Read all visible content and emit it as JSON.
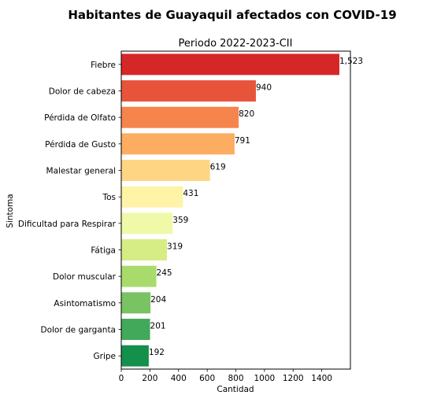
{
  "chart_data": {
    "type": "bar",
    "orientation": "horizontal",
    "title": "Habitantes de Guayaquil afectados con COVID-19",
    "subtitle": "Periodo 2022-2023-CII",
    "xlabel": "Cantidad",
    "ylabel": "Sintoma",
    "categories": [
      "Fiebre",
      "Dolor de cabeza",
      "Pérdida de Olfato",
      "Pérdida de Gusto",
      "Malestar general",
      "Tos",
      "Dificultad para Respirar",
      "Fátiga",
      "Dolor muscular",
      "Asintomatismo",
      "Dolor de garganta",
      "Gripe"
    ],
    "values": [
      1523,
      940,
      820,
      791,
      619,
      431,
      359,
      319,
      245,
      204,
      201,
      192
    ],
    "data_labels": [
      "1,523",
      "940",
      "820",
      "791",
      "619",
      "431",
      "359",
      "319",
      "245",
      "204",
      "201",
      "192"
    ],
    "colors": [
      "#d62728",
      "#e8543a",
      "#f5844d",
      "#fcad61",
      "#fed583",
      "#fef3a6",
      "#eff9a8",
      "#d5ed84",
      "#a9db6c",
      "#79c363",
      "#42a95a",
      "#148f4c"
    ],
    "xticks": [
      0,
      200,
      400,
      600,
      800,
      1000,
      1200,
      1400
    ],
    "xlim": [
      0,
      1600
    ],
    "grid": false,
    "legend": "none"
  }
}
